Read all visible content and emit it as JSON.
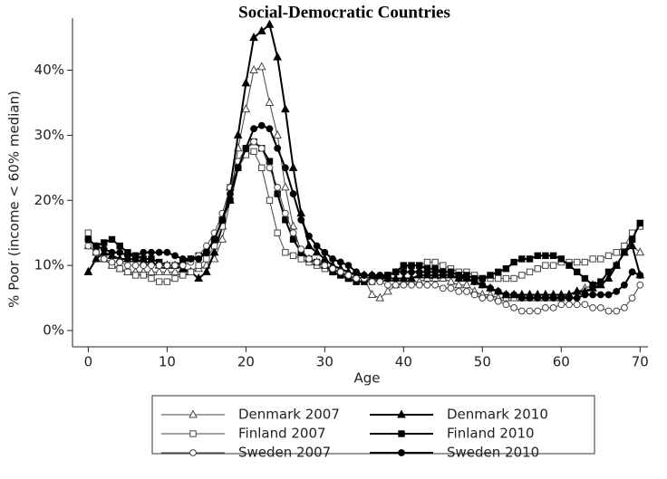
{
  "chart_data": {
    "type": "line",
    "title": "Social-Democratic Countries",
    "x_label": "Age",
    "y_label": "% Poor (income < 60% median)",
    "x": [
      0,
      1,
      2,
      3,
      4,
      5,
      6,
      7,
      8,
      9,
      10,
      11,
      12,
      13,
      14,
      15,
      16,
      17,
      18,
      19,
      20,
      21,
      22,
      23,
      24,
      25,
      26,
      27,
      28,
      29,
      30,
      31,
      32,
      33,
      34,
      35,
      36,
      37,
      38,
      39,
      40,
      41,
      42,
      43,
      44,
      45,
      46,
      47,
      48,
      49,
      50,
      51,
      52,
      53,
      54,
      55,
      56,
      57,
      58,
      59,
      60,
      61,
      62,
      63,
      64,
      65,
      66,
      67,
      68,
      69,
      70
    ],
    "xlim": [
      -2,
      71
    ],
    "xticks": [
      0,
      10,
      20,
      30,
      40,
      50,
      60,
      70
    ],
    "ylim": [
      -2.5,
      48
    ],
    "yticks": [
      {
        "value": 0,
        "label": "0%"
      },
      {
        "value": 10,
        "label": "10%"
      },
      {
        "value": 20,
        "label": "20%"
      },
      {
        "value": 30,
        "label": "30%"
      },
      {
        "value": 40,
        "label": "40%"
      }
    ],
    "series": [
      {
        "name": "Denmark 2007",
        "color": "#444444",
        "marker": "triangle",
        "filled": false,
        "values": [
          13,
          12,
          11,
          10,
          9.5,
          9,
          9,
          9,
          9,
          9,
          9,
          9,
          9,
          9,
          9.5,
          10,
          11,
          14,
          20,
          28,
          34,
          40,
          40.5,
          35,
          30,
          22,
          16,
          12,
          11,
          10.5,
          10,
          9.5,
          9,
          8.5,
          8,
          8,
          5.5,
          5,
          6,
          7,
          7.5,
          7.5,
          7.5,
          8,
          8,
          8,
          7.5,
          7,
          7,
          6,
          5.5,
          5.5,
          5,
          5,
          5,
          5,
          5,
          5,
          5,
          5,
          5,
          5.5,
          6,
          6.5,
          7,
          7,
          8,
          10,
          12,
          13,
          12
        ]
      },
      {
        "name": "Denmark 2010",
        "color": "#000000",
        "marker": "triangle",
        "filled": true,
        "values": [
          9,
          11,
          12,
          11.5,
          11,
          11,
          11,
          10.5,
          10.5,
          10,
          10,
          10,
          9.5,
          9,
          8,
          9,
          12,
          16,
          22,
          30,
          38,
          45,
          46,
          47,
          42,
          34,
          25,
          18,
          13,
          12,
          11,
          10,
          9.5,
          9,
          8.5,
          8.5,
          8.5,
          8,
          8,
          8,
          8,
          8,
          8.5,
          8.5,
          8.5,
          8.5,
          8.5,
          8,
          8,
          7.5,
          7,
          6.5,
          6,
          5.5,
          5.5,
          5.5,
          5.5,
          5.5,
          5.5,
          5.5,
          5.5,
          5.5,
          6,
          6,
          6.5,
          7,
          8,
          10,
          12,
          13,
          8.5
        ]
      },
      {
        "name": "Finland 2007",
        "color": "#444444",
        "marker": "square",
        "filled": false,
        "values": [
          15,
          12,
          11,
          10,
          9.5,
          9,
          8.5,
          8.5,
          8,
          7.5,
          7.5,
          8,
          8.5,
          9,
          10,
          11,
          13,
          16,
          22,
          25,
          27,
          27.5,
          25,
          20,
          15,
          12,
          11.5,
          11,
          10.5,
          10,
          9.5,
          9,
          8.5,
          8,
          7.5,
          7.5,
          7.5,
          8,
          8.5,
          9,
          9.5,
          10,
          10,
          10.5,
          10.5,
          10,
          9.5,
          9,
          9,
          8.5,
          8,
          8,
          8,
          8,
          8,
          8.5,
          9,
          9.5,
          10,
          10,
          10.5,
          10.5,
          10.5,
          10.5,
          11,
          11,
          11.5,
          12,
          13,
          15,
          16
        ]
      },
      {
        "name": "Finland 2010",
        "color": "#000000",
        "marker": "square",
        "filled": true,
        "values": [
          14,
          13,
          13.5,
          14,
          13,
          12,
          11.5,
          11,
          11,
          10.5,
          10,
          10,
          10.5,
          11,
          11.5,
          12,
          14,
          17,
          20,
          25,
          28,
          29,
          28,
          26,
          21,
          17,
          14,
          12,
          11,
          10.5,
          10,
          9,
          8.5,
          8,
          7.5,
          7.5,
          8,
          8,
          8.5,
          9,
          10,
          10,
          10,
          9.5,
          9.5,
          9,
          9,
          8.5,
          8.5,
          8,
          8,
          8.5,
          9,
          9.5,
          10.5,
          11,
          11,
          11.5,
          11.5,
          11.5,
          11,
          10,
          9,
          8,
          7,
          7.5,
          9,
          10,
          12,
          14,
          16.5
        ]
      },
      {
        "name": "Sweden 2007",
        "color": "#444444",
        "marker": "circle",
        "filled": false,
        "values": [
          13,
          12,
          11,
          10.5,
          10.5,
          10,
          10,
          10,
          10,
          10,
          10,
          10,
          10,
          10.5,
          11.5,
          13,
          15,
          18,
          22,
          26,
          28,
          29,
          28,
          25,
          22,
          18,
          15,
          12.5,
          11,
          10.5,
          10,
          9.5,
          9,
          8.5,
          8,
          8,
          7.5,
          7.5,
          7,
          7,
          7,
          7,
          7,
          7,
          7,
          6.5,
          6.5,
          6,
          6,
          5.5,
          5,
          5,
          4.5,
          4,
          3.5,
          3,
          3,
          3,
          3.5,
          3.5,
          4,
          4,
          4,
          4,
          3.5,
          3.5,
          3,
          3,
          3.5,
          5,
          7
        ]
      },
      {
        "name": "Sweden 2010",
        "color": "#000000",
        "marker": "circle",
        "filled": true,
        "values": [
          14,
          13,
          12.5,
          12,
          12,
          11.5,
          11.5,
          12,
          12,
          12,
          12,
          11.5,
          11,
          11,
          11,
          12,
          14,
          17,
          21,
          25,
          28,
          31,
          31.5,
          31,
          28,
          25,
          21,
          17,
          14.5,
          13,
          12,
          11,
          10.5,
          10,
          9,
          8.5,
          8.5,
          8.5,
          8.5,
          9,
          9,
          9,
          9,
          9,
          9,
          9,
          9,
          8.5,
          8,
          7.5,
          7,
          6.5,
          6,
          5.5,
          5.5,
          5,
          5,
          5,
          5,
          5,
          5,
          5,
          5,
          5.5,
          5.5,
          5.5,
          5.5,
          6,
          7,
          9,
          8.5
        ]
      }
    ]
  }
}
